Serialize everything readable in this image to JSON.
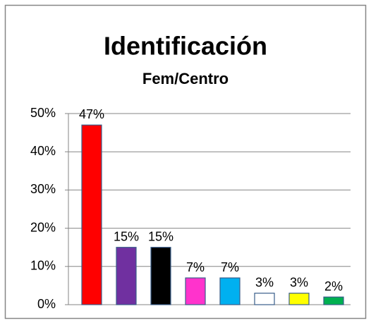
{
  "chart_data": {
    "type": "bar",
    "title": "Identificación",
    "subtitle": "Fem/Centro",
    "categories": [
      null,
      null,
      null,
      null,
      null,
      null,
      null,
      null
    ],
    "values": [
      47,
      15,
      15,
      7,
      7,
      3,
      3,
      2
    ],
    "value_labels": [
      "47%",
      "15%",
      "15%",
      "7%",
      "7%",
      "3%",
      "3%",
      "2%"
    ],
    "colors": [
      "#ff0000",
      "#7030a0",
      "#000000",
      "#ff33cc",
      "#00b0f0",
      "#ffffff",
      "#ffff00",
      "#00b050"
    ],
    "ylim": [
      0,
      50
    ],
    "yticks": [
      {
        "value": 0,
        "label": "0%"
      },
      {
        "value": 10,
        "label": "10%"
      },
      {
        "value": 20,
        "label": "20%"
      },
      {
        "value": 30,
        "label": "30%"
      },
      {
        "value": 40,
        "label": "40%"
      },
      {
        "value": 50,
        "label": "50%"
      }
    ],
    "grid": true
  }
}
